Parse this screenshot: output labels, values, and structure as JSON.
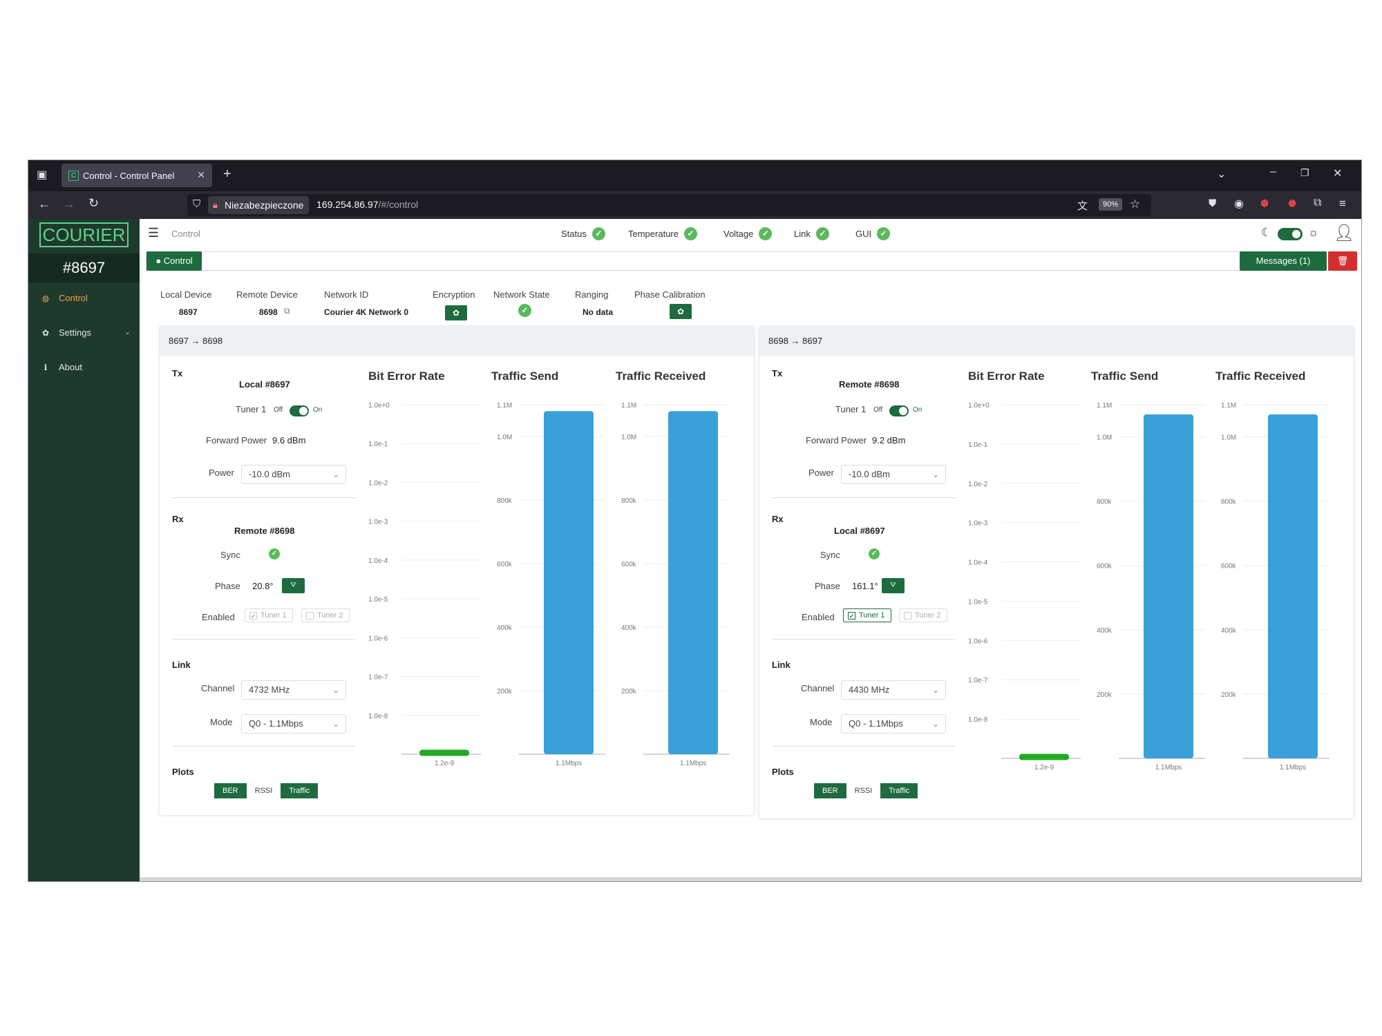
{
  "browser": {
    "tab_title": "Control - Control Panel",
    "tab_favicon": "C",
    "insecure_label": "Niezabezpieczone",
    "url_host": "169.254.86.97",
    "url_path": "/#/control",
    "zoom": "90%"
  },
  "sidebar": {
    "logo": "COURIER",
    "device_id": "#8697",
    "items": [
      {
        "label": "Control",
        "icon": "dashboard-icon"
      },
      {
        "label": "Settings",
        "icon": "gear-icon"
      },
      {
        "label": "About",
        "icon": "info-icon"
      }
    ]
  },
  "topbar": {
    "breadcrumb": "Control",
    "statuses": [
      {
        "label": "Status"
      },
      {
        "label": "Temperature"
      },
      {
        "label": "Voltage"
      },
      {
        "label": "Link"
      },
      {
        "label": "GUI"
      }
    ]
  },
  "controlbar": {
    "tab_label": "● Control",
    "messages_label": "Messages (1)"
  },
  "info": {
    "headers": [
      "Local Device",
      "Remote Device",
      "Network ID",
      "Encryption",
      "Network State",
      "Ranging",
      "Phase Calibration"
    ],
    "local_device": "8697",
    "remote_device": "8698",
    "network_id": "Courier 4K Network 0",
    "ranging": "No data"
  },
  "panels": [
    {
      "title": "8697 → 8698",
      "tx_label": "Tx",
      "tx_device": "Local #8697",
      "tuner_label": "Tuner 1",
      "off": "Off",
      "on": "On",
      "forward_power_label": "Forward Power",
      "forward_power": "9.6 dBm",
      "power_label": "Power",
      "power": "-10.0 dBm",
      "rx_label": "Rx",
      "rx_device": "Remote #8698",
      "sync_label": "Sync",
      "phase_label": "Phase",
      "phase": "20.8°",
      "enabled_label": "Enabled",
      "tuner1": "Tuner 1",
      "tuner2": "Tuner 2",
      "tuner1_checked": false,
      "link_label": "Link",
      "channel_label": "Channel",
      "channel": "4732 MHz",
      "mode_label": "Mode",
      "mode": "Q0 - 1.1Mbps",
      "plots_label": "Plots",
      "plot_buttons": [
        "BER",
        "RSSI",
        "Traffic"
      ],
      "charts": {
        "ber": {
          "title": "Bit Error Rate",
          "ticks": [
            "1.0e+0",
            "1.0e-1",
            "1.0e-2",
            "1.0e-3",
            "1.0e-4",
            "1.0e-5",
            "1.0e-6",
            "1.0e-7",
            "1.0e-8"
          ],
          "value": 1.2e-09,
          "value_label": "1.2e-9"
        },
        "send": {
          "title": "Traffic Send",
          "ticks": [
            "1.1M",
            "1.0M",
            "800k",
            "600k",
            "400k",
            "200k"
          ],
          "value": 1.08,
          "value_label": "1.1Mbps"
        },
        "recv": {
          "title": "Traffic Received",
          "ticks": [
            "1.1M",
            "1.0M",
            "800k",
            "600k",
            "400k",
            "200k"
          ],
          "value": 1.08,
          "value_label": "1.1Mbps"
        }
      }
    },
    {
      "title": "8698 → 8697",
      "tx_label": "Tx",
      "tx_device": "Remote #8698",
      "tuner_label": "Tuner 1",
      "off": "Off",
      "on": "On",
      "forward_power_label": "Forward Power",
      "forward_power": "9.2 dBm",
      "power_label": "Power",
      "power": "-10.0 dBm",
      "rx_label": "Rx",
      "rx_device": "Local #8697",
      "sync_label": "Sync",
      "phase_label": "Phase",
      "phase": "161.1°",
      "enabled_label": "Enabled",
      "tuner1": "Tuner 1",
      "tuner2": "Tuner 2",
      "tuner1_checked": true,
      "link_label": "Link",
      "channel_label": "Channel",
      "channel": "4430 MHz",
      "mode_label": "Mode",
      "mode": "Q0 - 1.1Mbps",
      "plots_label": "Plots",
      "plot_buttons": [
        "BER",
        "RSSI",
        "Traffic"
      ],
      "charts": {
        "ber": {
          "title": "Bit Error Rate",
          "ticks": [
            "1.0e+0",
            "1.0e-1",
            "1.0e-2",
            "1.0e-3",
            "1.0e-4",
            "1.0e-5",
            "1.0e-6",
            "1.0e-7",
            "1.0e-8"
          ],
          "value": 1.2e-09,
          "value_label": "1.2e-9"
        },
        "send": {
          "title": "Traffic Send",
          "ticks": [
            "1.1M",
            "1.0M",
            "800k",
            "600k",
            "400k",
            "200k"
          ],
          "value": 1.07,
          "value_label": "1.1Mbps"
        },
        "recv": {
          "title": "Traffic Received",
          "ticks": [
            "1.1M",
            "1.0M",
            "800k",
            "600k",
            "400k",
            "200k"
          ],
          "value": 1.07,
          "value_label": "1.1Mbps"
        }
      }
    }
  ],
  "colors": {
    "accent": "#1e6b3f",
    "bar": "#3aa0d8",
    "ber_bar": "#22aa22",
    "sidebar": "#1e3a2c",
    "danger": "#d32f2f",
    "ok": "#5cb85c",
    "active_nav": "#f0a050"
  }
}
